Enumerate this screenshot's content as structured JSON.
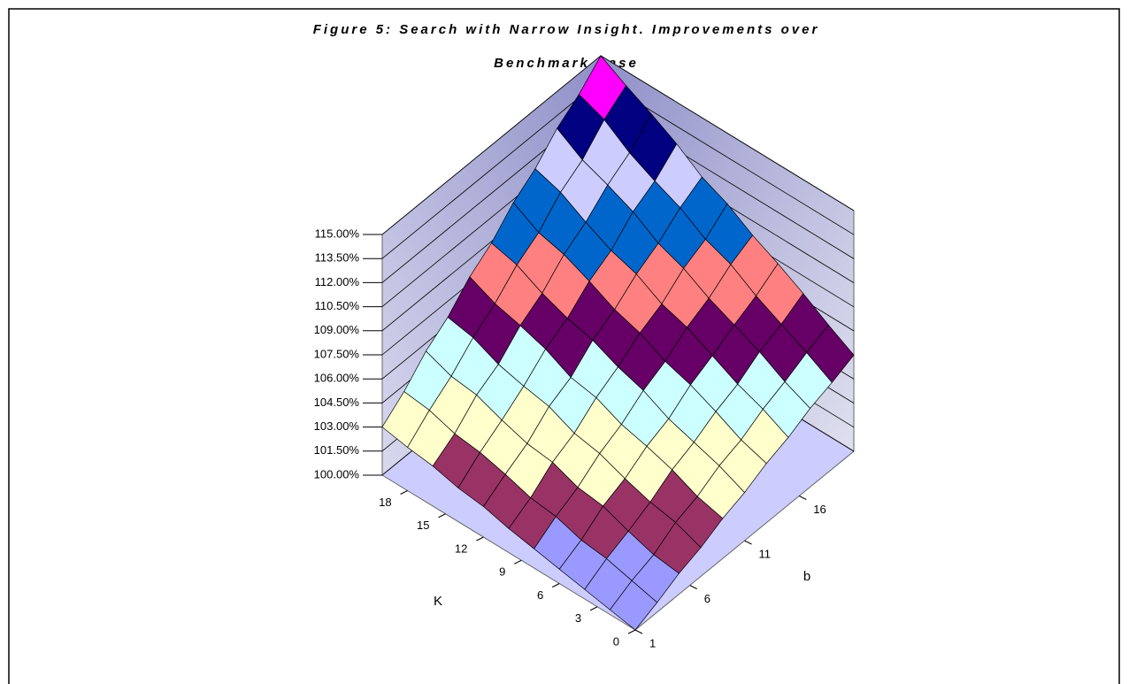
{
  "chart_data": {
    "type": "surface",
    "title_lines": [
      "Figure 5: Search with Narrow Insight. Improvements over",
      "Benchmark Case"
    ],
    "xlabel": "K",
    "ylabel": "b",
    "k_values": [
      0,
      2,
      4,
      6,
      8,
      10,
      12,
      14,
      16,
      18,
      20
    ],
    "b_values": [
      1,
      3,
      5,
      7,
      9,
      11,
      13,
      15,
      17,
      19,
      21
    ],
    "z": [
      [
        100,
        100.6,
        101.3,
        101.8,
        102.5,
        103,
        103.7,
        104.2,
        104.9,
        105.4,
        106
      ],
      [
        100.3,
        101.0,
        101.5,
        102.4,
        102.9,
        103.7,
        104.2,
        105.0,
        105.6,
        106.3,
        106.9
      ],
      [
        100.6,
        101.4,
        102.0,
        102.7,
        103.6,
        104.2,
        105.0,
        105.6,
        106.5,
        107.1,
        107.9
      ],
      [
        100.9,
        101.6,
        102.6,
        103.2,
        104.1,
        104.7,
        105.7,
        106.4,
        107.2,
        107.9,
        108.8
      ],
      [
        101.2,
        102.1,
        102.8,
        103.8,
        104.5,
        105.5,
        106.2,
        107.2,
        107.9,
        108.9,
        109.6
      ],
      [
        101.5,
        102.3,
        103.4,
        104.1,
        105.2,
        106.0,
        107.0,
        107.7,
        108.8,
        109.5,
        110.6
      ],
      [
        101.9,
        102.8,
        103.6,
        104.8,
        105.5,
        106.7,
        107.5,
        108.6,
        109.4,
        110.5,
        111.3
      ],
      [
        102.1,
        103.2,
        104.1,
        105.1,
        106.3,
        107.1,
        108.3,
        109.1,
        110.4,
        111.2,
        112.4
      ],
      [
        102.5,
        103.4,
        104.7,
        105.5,
        106.8,
        107.7,
        109.0,
        109.9,
        111.1,
        112.0,
        113.3
      ],
      [
        102.7,
        103.9,
        104.9,
        106.2,
        107.2,
        108.5,
        109.4,
        110.8,
        111.7,
        113.1,
        114.1
      ],
      [
        103,
        104.1,
        105.5,
        106.5,
        107.9,
        108.9,
        110.3,
        111.3,
        112.7,
        113.7,
        115
      ]
    ],
    "zlim": [
      100,
      115
    ],
    "zticks": [
      {
        "value": 100,
        "label": "100.00%"
      },
      {
        "value": 101.5,
        "label": "101.50%"
      },
      {
        "value": 103,
        "label": "103.00%"
      },
      {
        "value": 104.5,
        "label": "104.50%"
      },
      {
        "value": 106,
        "label": "106.00%"
      },
      {
        "value": 107.5,
        "label": "107.50%"
      },
      {
        "value": 109,
        "label": "109.00%"
      },
      {
        "value": 110.5,
        "label": "110.50%"
      },
      {
        "value": 112,
        "label": "112.00%"
      },
      {
        "value": 113.5,
        "label": "113.50%"
      },
      {
        "value": 115,
        "label": "115.00%"
      }
    ],
    "kticks": [
      0,
      3,
      6,
      9,
      12,
      15,
      18
    ],
    "bticks": [
      1,
      6,
      11,
      16
    ],
    "band_colors": [
      "#9999ff",
      "#993366",
      "#ffffcc",
      "#ccffff",
      "#660066",
      "#ff8080",
      "#0066cc",
      "#ccccff",
      "#000080",
      "#ff00ff"
    ]
  }
}
